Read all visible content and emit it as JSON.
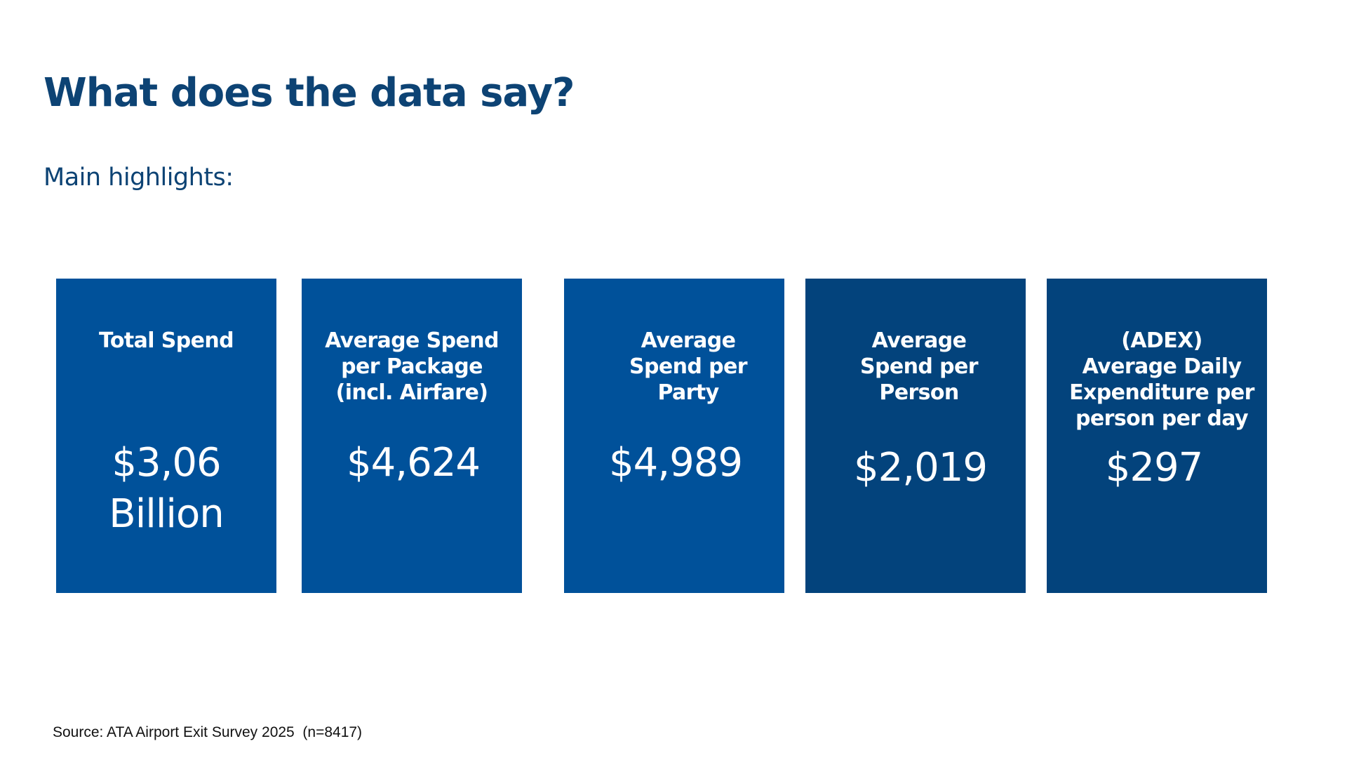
{
  "slide": {
    "title": "What does the data say?",
    "subtitle": "Main highlights:",
    "source": "Source: ATA Airport Exit Survey 2025  (n=8417)"
  },
  "colors": {
    "title_text": "#0d4374",
    "card_blue": "#00519a",
    "card_navy": "#03437c",
    "card_text": "#ffffff"
  },
  "cards": [
    {
      "label": "Total Spend",
      "value": "$3,06\nBillion"
    },
    {
      "label": "Average Spend\nper Package\n(incl. Airfare)",
      "value": "$4,624"
    },
    {
      "label": "Average\nSpend per\nParty",
      "value": "$4,989"
    },
    {
      "label": "Average\nSpend per\nPerson",
      "value": "$2,019"
    },
    {
      "label": "(ADEX)\nAverage Daily\nExpenditure per\nperson per day",
      "value": "$297"
    }
  ]
}
